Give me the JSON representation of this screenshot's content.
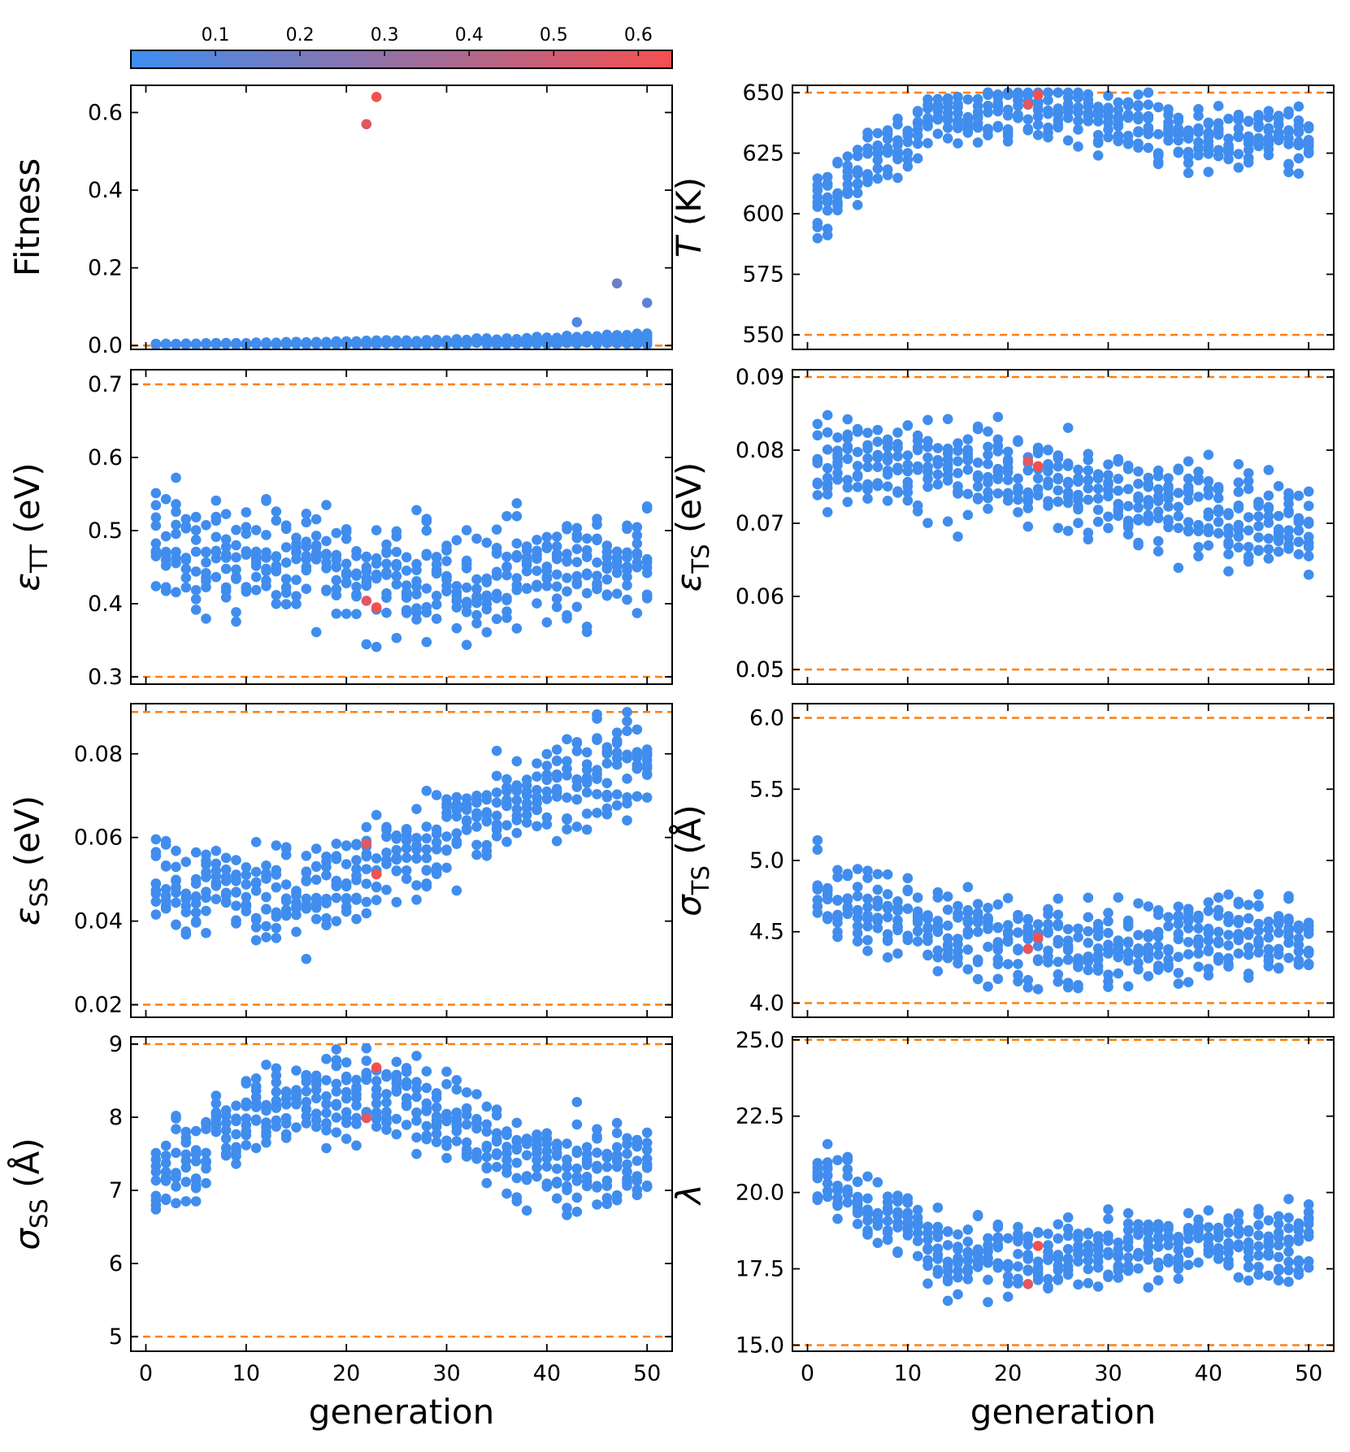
{
  "colorbar": {
    "ticks": [
      0.1,
      0.2,
      0.3,
      0.4,
      0.5,
      0.6
    ],
    "tick_labels": [
      "0.1",
      "0.2",
      "0.3",
      "0.4",
      "0.5",
      "0.6"
    ],
    "range": [
      0.0,
      0.64
    ],
    "color_low": "#3d8ef0",
    "color_high": "#f55050"
  },
  "colors": {
    "bounds_line": "#ff7f0e",
    "axis": "#000000"
  },
  "chart_data": [
    {
      "id": "fitness",
      "type": "scatter",
      "ylabel": "Fitness",
      "ylabel_main": "Fitness",
      "ylabel_sub": "",
      "ylabel_rest": "",
      "ylim": [
        -0.01,
        0.67
      ],
      "yticks": [
        0.0,
        0.2,
        0.4,
        0.6
      ],
      "ytick_labels": [
        "0.0",
        "0.2",
        "0.4",
        "0.6"
      ],
      "bounds": [
        0.0
      ],
      "center": 0.01,
      "spread": 0.012,
      "seed": 1,
      "highlights": [
        {
          "x": 22,
          "y": 0.57,
          "fit": 0.57
        },
        {
          "x": 23,
          "y": 0.64,
          "fit": 0.64
        },
        {
          "x": 47,
          "y": 0.16,
          "fit": 0.16
        },
        {
          "x": 50,
          "y": 0.11,
          "fit": 0.11
        },
        {
          "x": 43,
          "y": 0.06,
          "fit": 0.06
        }
      ]
    },
    {
      "id": "temperature",
      "type": "scatter",
      "ylabel": "T (K)",
      "ylabel_main": "T",
      "ylabel_sub": "",
      "ylabel_rest": " (K)",
      "ylim": [
        544,
        653
      ],
      "yticks": [
        550,
        575,
        600,
        625,
        650
      ],
      "ytick_labels": [
        "550",
        "575",
        "600",
        "625",
        "650"
      ],
      "bounds": [
        550,
        650
      ],
      "center": [
        605,
        640,
        645,
        632,
        630
      ],
      "spread": 10,
      "seed": 2,
      "highlights": [
        {
          "x": 22,
          "y": 645,
          "fit": 0.57
        },
        {
          "x": 23,
          "y": 649,
          "fit": 0.64
        }
      ]
    },
    {
      "id": "eps_tt",
      "type": "scatter",
      "ylabel": "εTT (eV)",
      "ylabel_main": "ε",
      "ylabel_sub": "TT",
      "ylabel_rest": " (eV)",
      "ylim": [
        0.29,
        0.72
      ],
      "yticks": [
        0.3,
        0.4,
        0.5,
        0.6,
        0.7
      ],
      "ytick_labels": [
        "0.3",
        "0.4",
        "0.5",
        "0.6",
        "0.7"
      ],
      "bounds": [
        0.3,
        0.7
      ],
      "center": [
        0.48,
        0.46,
        0.43,
        0.44,
        0.46
      ],
      "spread": 0.055,
      "seed": 3,
      "highlights": [
        {
          "x": 22,
          "y": 0.404,
          "fit": 0.57
        },
        {
          "x": 23,
          "y": 0.395,
          "fit": 0.64
        }
      ]
    },
    {
      "id": "eps_ts",
      "type": "scatter",
      "ylabel": "εTS (eV)",
      "ylabel_main": "ε",
      "ylabel_sub": "TS",
      "ylabel_rest": " (eV)",
      "ylim": [
        0.048,
        0.091
      ],
      "yticks": [
        0.05,
        0.06,
        0.07,
        0.08,
        0.09
      ],
      "ytick_labels": [
        "0.05",
        "0.06",
        "0.07",
        "0.08",
        "0.09"
      ],
      "bounds": [
        0.05,
        0.09
      ],
      "center": [
        0.079,
        0.077,
        0.076,
        0.072,
        0.07
      ],
      "spread": 0.005,
      "seed": 4,
      "highlights": [
        {
          "x": 22,
          "y": 0.0785,
          "fit": 0.57
        },
        {
          "x": 23,
          "y": 0.0778,
          "fit": 0.64
        }
      ]
    },
    {
      "id": "eps_ss",
      "type": "scatter",
      "ylabel": "εSS (eV)",
      "ylabel_main": "ε",
      "ylabel_sub": "SS",
      "ylabel_rest": " (eV)",
      "ylim": [
        0.017,
        0.092
      ],
      "yticks": [
        0.02,
        0.04,
        0.06,
        0.08
      ],
      "ytick_labels": [
        "0.02",
        "0.04",
        "0.06",
        "0.08"
      ],
      "bounds": [
        0.02,
        0.09
      ],
      "center": [
        0.048,
        0.045,
        0.055,
        0.07,
        0.08
      ],
      "spread": 0.009,
      "seed": 5,
      "highlights": [
        {
          "x": 22,
          "y": 0.0585,
          "fit": 0.57
        },
        {
          "x": 23,
          "y": 0.0512,
          "fit": 0.64
        }
      ]
    },
    {
      "id": "sigma_ts",
      "type": "scatter",
      "ylabel": "σTS (Å)",
      "ylabel_main": "σ",
      "ylabel_sub": "TS",
      "ylabel_rest": " (Å)",
      "ylim": [
        3.9,
        6.1
      ],
      "yticks": [
        4.0,
        4.5,
        5.0,
        5.5,
        6.0
      ],
      "ytick_labels": [
        "4.0",
        "4.5",
        "5.0",
        "5.5",
        "6.0"
      ],
      "bounds": [
        4.0,
        6.0
      ],
      "center": [
        4.8,
        4.5,
        4.4,
        4.45,
        4.5
      ],
      "spread": 0.22,
      "seed": 6,
      "highlights": [
        {
          "x": 22,
          "y": 4.38,
          "fit": 0.57
        },
        {
          "x": 23,
          "y": 4.46,
          "fit": 0.64
        }
      ]
    },
    {
      "id": "sigma_ss",
      "type": "scatter",
      "ylabel": "σSS (Å)",
      "ylabel_main": "σ",
      "ylabel_sub": "SS",
      "ylabel_rest": " (Å)",
      "ylim": [
        4.8,
        9.1
      ],
      "yticks": [
        5,
        6,
        7,
        8,
        9
      ],
      "ytick_labels": [
        "5",
        "6",
        "7",
        "8",
        "9"
      ],
      "bounds": [
        5,
        9
      ],
      "center": [
        7.2,
        8.3,
        8.3,
        7.4,
        7.4
      ],
      "spread": 0.45,
      "seed": 7,
      "highlights": [
        {
          "x": 22,
          "y": 7.99,
          "fit": 0.57
        },
        {
          "x": 23,
          "y": 8.68,
          "fit": 0.64
        }
      ]
    },
    {
      "id": "lambda",
      "type": "scatter",
      "ylabel": "λ",
      "ylabel_main": "λ",
      "ylabel_sub": "",
      "ylabel_rest": "",
      "ylim": [
        14.8,
        25.1
      ],
      "yticks": [
        15.0,
        17.5,
        20.0,
        22.5,
        25.0
      ],
      "ytick_labels": [
        "15.0",
        "17.5",
        "20.0",
        "22.5",
        "25.0"
      ],
      "bounds": [
        15,
        25
      ],
      "center": [
        20.5,
        18.0,
        17.8,
        18.4,
        18.3
      ],
      "spread": 0.9,
      "seed": 8,
      "highlights": [
        {
          "x": 22,
          "y": 17.0,
          "fit": 0.57
        },
        {
          "x": 23,
          "y": 18.25,
          "fit": 0.64
        }
      ]
    }
  ],
  "x_axis": {
    "label": "generation",
    "ticks": [
      0,
      10,
      20,
      30,
      40,
      50
    ],
    "tick_labels": [
      "0",
      "10",
      "20",
      "30",
      "40",
      "50"
    ],
    "xlim": [
      -1.5,
      52.5
    ],
    "points_per_generation": 9,
    "generations": 50
  }
}
